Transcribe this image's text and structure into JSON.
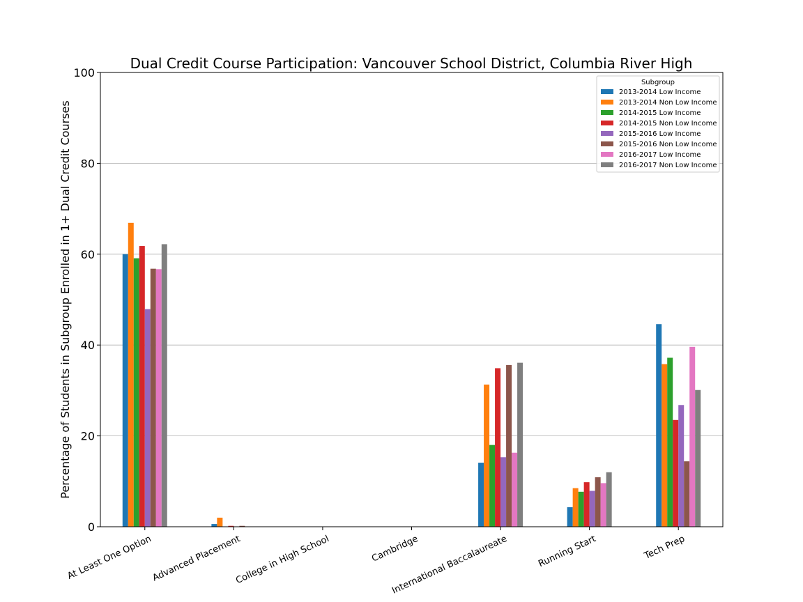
{
  "chart_data": {
    "type": "bar",
    "title": "Dual Credit Course Participation: Vancouver School District, Columbia River High",
    "xlabel": "",
    "ylabel": "Percentage of Students in Subgroup Enrolled in 1+ Dual Credit Courses",
    "ylim": [
      0,
      100
    ],
    "yticks": [
      "0",
      "20",
      "40",
      "60",
      "80",
      "100"
    ],
    "grid": "horizontal",
    "legend_title": "Subgroup",
    "legend_position": "top-right",
    "categories": [
      "At Least One Option",
      "Advanced Placement",
      "College in High School",
      "Cambridge",
      "International Baccalaureate",
      "Running Start",
      "Tech Prep"
    ],
    "series": [
      {
        "name": "2013-2014 Low Income",
        "color": "#1f77b4",
        "values": [
          60.0,
          0.6,
          0,
          0,
          14.1,
          4.3,
          44.6
        ]
      },
      {
        "name": "2013-2014 Non Low Income",
        "color": "#ff7f0e",
        "values": [
          66.9,
          2.0,
          0,
          0,
          31.3,
          8.5,
          35.8
        ]
      },
      {
        "name": "2014-2015 Low Income",
        "color": "#2ca02c",
        "values": [
          59.1,
          0,
          0,
          0,
          18.0,
          7.7,
          37.2
        ]
      },
      {
        "name": "2014-2015 Non Low Income",
        "color": "#d62728",
        "values": [
          61.8,
          0.2,
          0,
          0,
          34.9,
          9.8,
          23.5
        ]
      },
      {
        "name": "2015-2016 Low Income",
        "color": "#9467bd",
        "values": [
          47.9,
          0,
          0,
          0,
          15.3,
          7.9,
          26.8
        ]
      },
      {
        "name": "2015-2016 Non Low Income",
        "color": "#8c564b",
        "values": [
          56.8,
          0.2,
          0,
          0,
          35.6,
          10.9,
          14.4
        ]
      },
      {
        "name": "2016-2017 Low Income",
        "color": "#e377c2",
        "values": [
          56.7,
          0,
          0,
          0,
          16.3,
          9.6,
          39.6
        ]
      },
      {
        "name": "2016-2017 Non Low Income",
        "color": "#7f7f7f",
        "values": [
          62.2,
          0,
          0,
          0,
          36.1,
          12.0,
          30.1
        ]
      }
    ]
  }
}
